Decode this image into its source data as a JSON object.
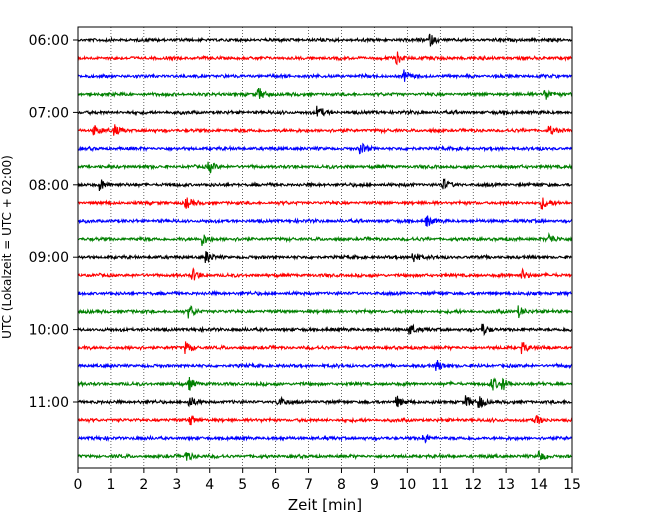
{
  "chart_data": {
    "type": "line",
    "title": "",
    "xlabel": "Zeit  [min]",
    "ylabel": "UTC (Lokalzeit = UTC + 02:00)",
    "xlim": [
      0,
      15
    ],
    "x_ticks": [
      "0",
      "1",
      "2",
      "3",
      "4",
      "5",
      "6",
      "7",
      "8",
      "9",
      "10",
      "11",
      "12",
      "13",
      "14",
      "15"
    ],
    "y_ticks": [
      "06:00",
      "07:00",
      "08:00",
      "09:00",
      "10:00",
      "11:00"
    ],
    "grid": "vertical dotted",
    "trace_interval_minutes": 15,
    "colors_cycle": [
      "#000000",
      "#ff0000",
      "#0000ff",
      "#008000"
    ],
    "traces": [
      {
        "start": "06:00",
        "color": "#000000",
        "events_min": [
          10.7
        ]
      },
      {
        "start": "06:15",
        "color": "#ff0000",
        "events_min": [
          9.7
        ]
      },
      {
        "start": "06:30",
        "color": "#0000ff",
        "events_min": [
          9.9
        ]
      },
      {
        "start": "06:45",
        "color": "#008000",
        "events_min": [
          5.5,
          14.2
        ]
      },
      {
        "start": "07:00",
        "color": "#000000",
        "events_min": [
          7.3
        ]
      },
      {
        "start": "07:15",
        "color": "#ff0000",
        "events_min": [
          0.5,
          1.1,
          14.3
        ]
      },
      {
        "start": "07:30",
        "color": "#0000ff",
        "events_min": [
          8.6
        ]
      },
      {
        "start": "07:45",
        "color": "#008000",
        "events_min": [
          4.0
        ]
      },
      {
        "start": "08:00",
        "color": "#000000",
        "events_min": [
          0.7,
          11.1
        ]
      },
      {
        "start": "08:15",
        "color": "#ff0000",
        "events_min": [
          3.3,
          14.1
        ]
      },
      {
        "start": "08:30",
        "color": "#0000ff",
        "events_min": [
          10.6
        ]
      },
      {
        "start": "08:45",
        "color": "#008000",
        "events_min": [
          3.8,
          14.3
        ]
      },
      {
        "start": "09:00",
        "color": "#000000",
        "events_min": [
          3.9,
          10.2
        ]
      },
      {
        "start": "09:15",
        "color": "#ff0000",
        "events_min": [
          3.5,
          13.5
        ]
      },
      {
        "start": "09:30",
        "color": "#0000ff",
        "events_min": []
      },
      {
        "start": "09:45",
        "color": "#008000",
        "events_min": [
          3.4,
          13.4
        ]
      },
      {
        "start": "10:00",
        "color": "#000000",
        "events_min": [
          10.1,
          12.3
        ]
      },
      {
        "start": "10:15",
        "color": "#ff0000",
        "events_min": [
          3.3,
          13.5
        ]
      },
      {
        "start": "10:30",
        "color": "#0000ff",
        "events_min": [
          10.9
        ]
      },
      {
        "start": "10:45",
        "color": "#008000",
        "events_min": [
          3.4,
          12.6,
          12.9
        ]
      },
      {
        "start": "11:00",
        "color": "#000000",
        "events_min": [
          3.4,
          6.1,
          9.7,
          11.8,
          12.2
        ]
      },
      {
        "start": "11:15",
        "color": "#ff0000",
        "events_min": [
          3.4,
          13.9
        ]
      },
      {
        "start": "11:30",
        "color": "#0000ff",
        "events_min": [
          10.5
        ]
      },
      {
        "start": "11:45",
        "color": "#008000",
        "events_min": [
          3.3,
          14.0
        ]
      }
    ]
  }
}
